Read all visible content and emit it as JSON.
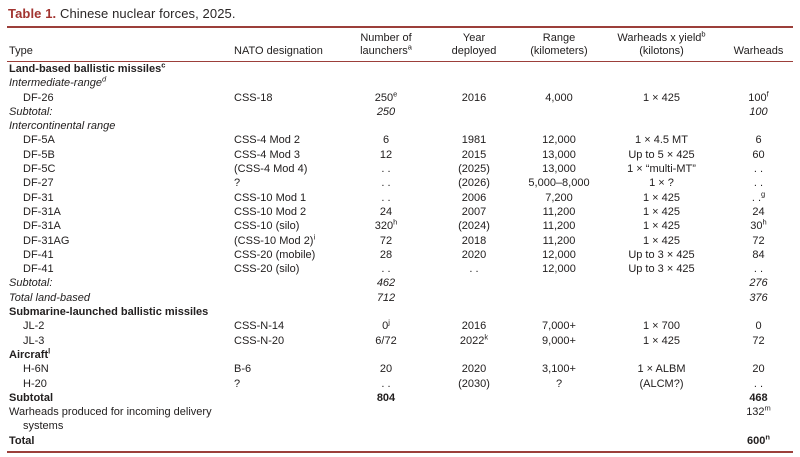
{
  "title": {
    "label": "Table 1.",
    "text": "Chinese nuclear forces, 2025."
  },
  "colors": {
    "accent_maroon": "#a23430",
    "rule_maroon": "#9c3f3a",
    "body_text": "#232020"
  },
  "table": {
    "columns": [
      {
        "id": "type",
        "lines": [
          "Type"
        ],
        "align": "left"
      },
      {
        "id": "nato",
        "lines": [
          "NATO designation"
        ],
        "align": "left"
      },
      {
        "id": "launchers",
        "lines": [
          "Number of",
          "launchers^a"
        ],
        "align": "center"
      },
      {
        "id": "year",
        "lines": [
          "Year",
          "deployed"
        ],
        "align": "center"
      },
      {
        "id": "range",
        "lines": [
          "Range",
          "(kilometers)"
        ],
        "align": "center"
      },
      {
        "id": "yield",
        "lines": [
          "Warheads x yield^b",
          "(kilotons)"
        ],
        "align": "center"
      },
      {
        "id": "warheads",
        "lines": [
          "Warheads"
        ],
        "align": "center"
      }
    ],
    "rows": [
      {
        "type": "Land-based ballistic missiles^c",
        "nato": "",
        "launchers": "",
        "year": "",
        "range": "",
        "yield": "",
        "warheads": "",
        "style": "bold",
        "indent": false
      },
      {
        "type": "Intermediate-range^d",
        "nato": "",
        "launchers": "",
        "year": "",
        "range": "",
        "yield": "",
        "warheads": "",
        "style": "italic",
        "indent": false
      },
      {
        "type": "DF-26",
        "nato": "CSS-18",
        "launchers": "250^e",
        "year": "2016",
        "range": "4,000",
        "yield": "1 × 425",
        "warheads": "100^f",
        "style": "normal",
        "indent": true
      },
      {
        "type": "Subtotal:",
        "nato": "",
        "launchers": "250",
        "year": "",
        "range": "",
        "yield": "",
        "warheads": "100",
        "style": "italic",
        "indent": false
      },
      {
        "type": "Intercontinental range",
        "nato": "",
        "launchers": "",
        "year": "",
        "range": "",
        "yield": "",
        "warheads": "",
        "style": "italic",
        "indent": false
      },
      {
        "type": "DF-5A",
        "nato": "CSS-4 Mod 2",
        "launchers": "6",
        "year": "1981",
        "range": "12,000",
        "yield": "1 × 4.5 MT",
        "warheads": "6",
        "style": "normal",
        "indent": true
      },
      {
        "type": "DF-5B",
        "nato": "CSS-4 Mod 3",
        "launchers": "12",
        "year": "2015",
        "range": "13,000",
        "yield": "Up to 5 × 425",
        "warheads": "60",
        "style": "normal",
        "indent": true
      },
      {
        "type": "DF-5C",
        "nato": "(CSS-4 Mod 4)",
        "launchers": ". .",
        "year": "(2025)",
        "range": "13,000",
        "yield": "1 × “multi-MT”",
        "warheads": ". .",
        "style": "normal",
        "indent": true
      },
      {
        "type": "DF-27",
        "nato": "?",
        "launchers": ". .",
        "year": "(2026)",
        "range": "5,000–8,000",
        "yield": "1 × ?",
        "warheads": ". .",
        "style": "normal",
        "indent": true
      },
      {
        "type": "DF-31",
        "nato": "CSS-10 Mod 1",
        "launchers": ". .",
        "year": "2006",
        "range": "7,200",
        "yield": "1 × 425",
        "warheads": ". .^g",
        "style": "normal",
        "indent": true
      },
      {
        "type": "DF-31A",
        "nato": "CSS-10 Mod 2",
        "launchers": "24",
        "year": "2007",
        "range": "11,200",
        "yield": "1 × 425",
        "warheads": "24",
        "style": "normal",
        "indent": true
      },
      {
        "type": "DF-31A",
        "nato": "CSS-10 (silo)",
        "launchers": "320^h",
        "year": "(2024)",
        "range": "11,200",
        "yield": "1 × 425",
        "warheads": "30^h",
        "style": "normal",
        "indent": true
      },
      {
        "type": "DF-31AG",
        "nato": "(CSS-10 Mod 2)^i",
        "launchers": "72",
        "year": "2018",
        "range": "11,200",
        "yield": "1 × 425",
        "warheads": "72",
        "style": "normal",
        "indent": true
      },
      {
        "type": "DF-41",
        "nato": "CSS-20 (mobile)",
        "launchers": "28",
        "year": "2020",
        "range": "12,000",
        "yield": "Up to 3 × 425",
        "warheads": "84",
        "style": "normal",
        "indent": true
      },
      {
        "type": "DF-41",
        "nato": "CSS-20 (silo)",
        "launchers": ". .",
        "year": ". .",
        "range": "12,000",
        "yield": "Up to 3 × 425",
        "warheads": ". .",
        "style": "normal",
        "indent": true
      },
      {
        "type": "Subtotal:",
        "nato": "",
        "launchers": "462",
        "year": "",
        "range": "",
        "yield": "",
        "warheads": "276",
        "style": "italic",
        "indent": false
      },
      {
        "type": "Total land-based",
        "nato": "",
        "launchers": "712",
        "year": "",
        "range": "",
        "yield": "",
        "warheads": "376",
        "style": "italic",
        "indent": false
      },
      {
        "type": "Submarine-launched ballistic missiles",
        "nato": "",
        "launchers": "",
        "year": "",
        "range": "",
        "yield": "",
        "warheads": "",
        "style": "bold",
        "indent": false
      },
      {
        "type": "JL-2",
        "nato": "CSS-N-14",
        "launchers": "0^j",
        "year": "2016",
        "range": "7,000+",
        "yield": "1 × 700",
        "warheads": "0",
        "style": "normal",
        "indent": true
      },
      {
        "type": "JL-3",
        "nato": "CSS-N-20",
        "launchers": "6/72",
        "year": "2022^k",
        "range": "9,000+",
        "yield": "1 × 425",
        "warheads": "72",
        "style": "normal",
        "indent": true
      },
      {
        "type": "Aircraft^l",
        "nato": "",
        "launchers": "",
        "year": "",
        "range": "",
        "yield": "",
        "warheads": "",
        "style": "bold",
        "indent": false
      },
      {
        "type": "H-6N",
        "nato": "B-6",
        "launchers": "20",
        "year": "2020",
        "range": "3,100+",
        "yield": "1 × ALBM",
        "warheads": "20",
        "style": "normal",
        "indent": true
      },
      {
        "type": "H-20",
        "nato": "?",
        "launchers": ". .",
        "year": "(2030)",
        "range": "?",
        "yield": "(ALCM?)",
        "warheads": ". .",
        "style": "normal",
        "indent": true
      },
      {
        "type": "Subtotal",
        "nato": "",
        "launchers": "804",
        "year": "",
        "range": "",
        "yield": "",
        "warheads": "468",
        "style": "bold",
        "indent": false
      },
      {
        "type": "Warheads produced for incoming delivery systems",
        "nato": "",
        "launchers": "",
        "year": "",
        "range": "",
        "yield": "",
        "warheads": "132^m",
        "style": "normal",
        "indent": false,
        "wrap": true
      },
      {
        "type": "Total",
        "nato": "",
        "launchers": "",
        "year": "",
        "range": "",
        "yield": "",
        "warheads": "600^n",
        "style": "bold",
        "indent": false,
        "total": true
      }
    ]
  }
}
